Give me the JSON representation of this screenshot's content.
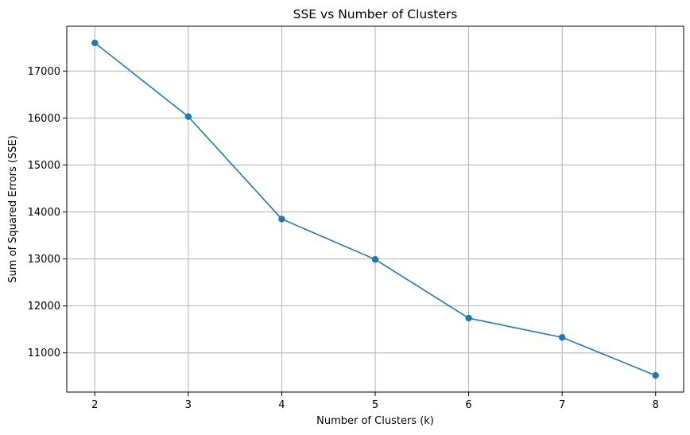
{
  "chart_data": {
    "type": "line",
    "title": "SSE vs Number of Clusters",
    "xlabel": "Number of Clusters (k)",
    "ylabel": "Sum of Squared Errors (SSE)",
    "x": [
      2,
      3,
      4,
      5,
      6,
      7,
      8
    ],
    "series": [
      {
        "values": [
          17600,
          16030,
          13850,
          12990,
          11740,
          11330,
          10520
        ],
        "color": "#1f77b4",
        "marker": "circle"
      }
    ],
    "xticks": [
      2,
      3,
      4,
      5,
      6,
      7,
      8
    ],
    "yticks": [
      11000,
      12000,
      13000,
      14000,
      15000,
      16000,
      17000
    ],
    "xlim": [
      1.7,
      8.3
    ],
    "ylim": [
      10166,
      17954
    ],
    "grid": true,
    "legend": false
  }
}
